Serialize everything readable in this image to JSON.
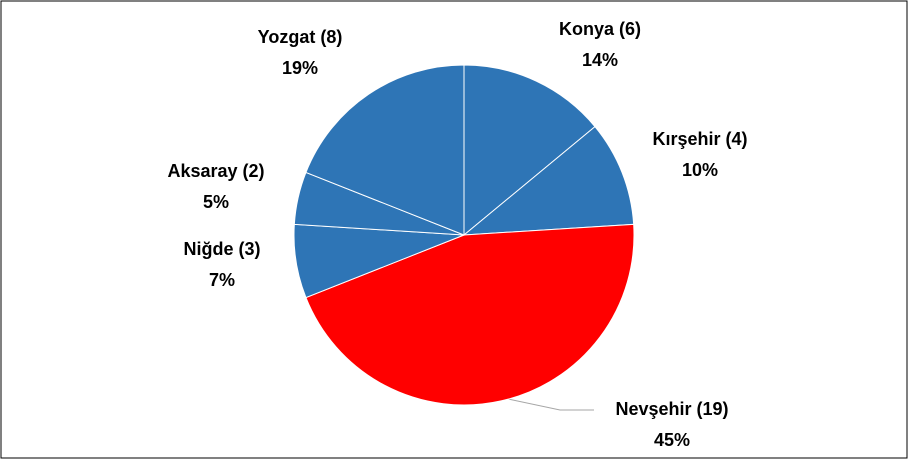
{
  "chart_data": {
    "type": "pie",
    "categories": [
      "Konya (6)",
      "Kırşehir (4)",
      "Nevşehir (19)",
      "Niğde (3)",
      "Aksaray (2)",
      "Yozgat (8)"
    ],
    "values": [
      14,
      10,
      45,
      7,
      5,
      19
    ],
    "value_labels": [
      "14%",
      "10%",
      "45%",
      "7%",
      "5%",
      "19%"
    ],
    "colors": [
      "#2e75b6",
      "#2e75b6",
      "#ff0000",
      "#2e75b6",
      "#2e75b6",
      "#2e75b6"
    ]
  }
}
